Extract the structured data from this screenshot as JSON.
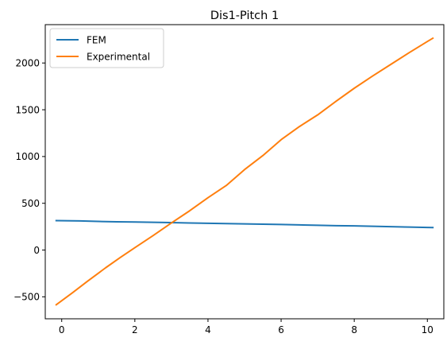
{
  "chart_data": {
    "type": "line",
    "title": "Dis1-Pitch 1",
    "xlabel": "",
    "ylabel": "",
    "xlim": [
      -0.45,
      10.45
    ],
    "ylim": [
      -735,
      2410
    ],
    "x_ticks": [
      0,
      2,
      4,
      6,
      8,
      10
    ],
    "y_ticks": [
      -500,
      0,
      500,
      1000,
      1500,
      2000
    ],
    "grid": false,
    "legend_position": "top-left",
    "series": [
      {
        "name": "FEM",
        "color": "#1f77b4",
        "x": [
          -0.15,
          0.5,
          1.0,
          1.5,
          2.0,
          2.5,
          3.0,
          3.5,
          4.0,
          4.5,
          5.0,
          5.5,
          6.0,
          6.5,
          7.0,
          7.5,
          8.0,
          8.5,
          9.0,
          9.5,
          10.0,
          10.15
        ],
        "y": [
          315,
          312,
          306,
          302,
          300,
          297,
          293,
          289,
          286,
          283,
          280,
          277,
          273,
          269,
          265,
          261,
          258,
          254,
          250,
          246,
          241,
          240
        ]
      },
      {
        "name": "Experimental",
        "color": "#ff7f0e",
        "x": [
          -0.15,
          0.3,
          0.7,
          1.2,
          1.6,
          2.0,
          2.5,
          3.0,
          3.5,
          4.0,
          4.5,
          5.0,
          5.5,
          6.0,
          6.5,
          7.0,
          7.5,
          8.0,
          8.5,
          9.0,
          9.5,
          10.0,
          10.15
        ],
        "y": [
          -585,
          -455,
          -335,
          -190,
          -80,
          25,
          155,
          290,
          420,
          560,
          690,
          860,
          1010,
          1180,
          1320,
          1445,
          1590,
          1730,
          1860,
          1985,
          2110,
          2230,
          2265
        ]
      }
    ]
  }
}
